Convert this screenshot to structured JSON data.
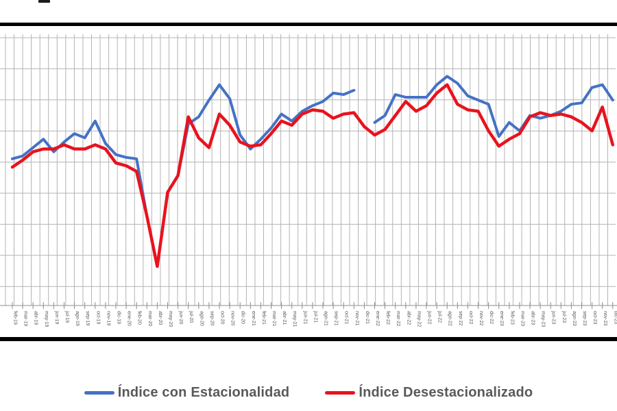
{
  "chart_data": {
    "type": "line",
    "title": "",
    "xlabel": "",
    "ylabel": "",
    "y_axis_labels_visible": false,
    "grid": true,
    "legend_position": "bottom",
    "ylim": [
      0,
      100
    ],
    "categories": [
      "feb-19",
      "mar-19",
      "abr-19",
      "may-19",
      "jun-19",
      "jul-19",
      "ago-19",
      "sep-19",
      "oct-19",
      "nov-19",
      "dic-19",
      "ene-20",
      "feb-20",
      "mar-20",
      "abr-20",
      "may-20",
      "jun-20",
      "jul-20",
      "ago-20",
      "sep-20",
      "oct-20",
      "nov-20",
      "dic-20",
      "ene-21",
      "feb-21",
      "mar-21",
      "abr-21",
      "may-21",
      "jun-21",
      "jul-21",
      "ago-21",
      "sep-21",
      "oct-21",
      "nov-21",
      "dic-21",
      "ene-22",
      "feb-22",
      "mar-22",
      "abr-22",
      "may-22",
      "jun-22",
      "jul-22",
      "ago-22",
      "sep-22",
      "oct-22",
      "nov-22",
      "dic-22",
      "ene-23",
      "feb-23",
      "mar-23",
      "abr-23",
      "may-23",
      "jun-23",
      "jul-23",
      "ago-23",
      "sep-23",
      "oct-23",
      "nov-23",
      "dic-23"
    ],
    "series": [
      {
        "name": "Índice con Estacionalidad",
        "color": "#4472C4",
        "stroke_width": 4,
        "values": [
          52.5,
          53.5,
          56.5,
          59.5,
          55,
          58.5,
          61.5,
          60,
          66,
          58,
          54,
          53,
          52.5,
          32,
          14,
          40.5,
          46.5,
          65,
          67.5,
          73.5,
          79,
          74,
          61,
          56,
          59.5,
          63.5,
          68.5,
          66,
          69.5,
          71.5,
          73,
          76,
          75.5,
          77,
          null,
          65.5,
          68,
          75.5,
          74.5,
          74.5,
          74.5,
          79,
          82,
          79.5,
          75,
          73.5,
          72,
          60.5,
          65.5,
          62.5,
          68,
          67,
          68,
          69.5,
          72,
          72.5,
          78,
          79,
          73.5
        ]
      },
      {
        "name": "Índice Desestacionalizado",
        "color": "#E8131D",
        "stroke_width": 4.5,
        "values": [
          49.5,
          52,
          55,
          56,
          56,
          57.5,
          56,
          56,
          57.5,
          56,
          51,
          50,
          48,
          32,
          14,
          40.5,
          46.5,
          67.5,
          60,
          56.5,
          68.5,
          64.5,
          58.5,
          57,
          57.5,
          61.5,
          66,
          64.5,
          68.5,
          70,
          69.5,
          67,
          68.5,
          69,
          64,
          61,
          63,
          68,
          73,
          69.5,
          71.5,
          76,
          79,
          72,
          70,
          69.5,
          62.5,
          57,
          59.5,
          61.5,
          67.5,
          69,
          68,
          68.5,
          67.5,
          65.5,
          62.5,
          71,
          57.5
        ]
      }
    ]
  },
  "legend": {
    "item1": "Índice con Estacionalidad",
    "item2": "Índice Desestacionalizado"
  },
  "colors": {
    "grid": "#b3b3b3",
    "axis": "#8c8c8c",
    "tick_label": "#595959",
    "rule": "#000000"
  }
}
